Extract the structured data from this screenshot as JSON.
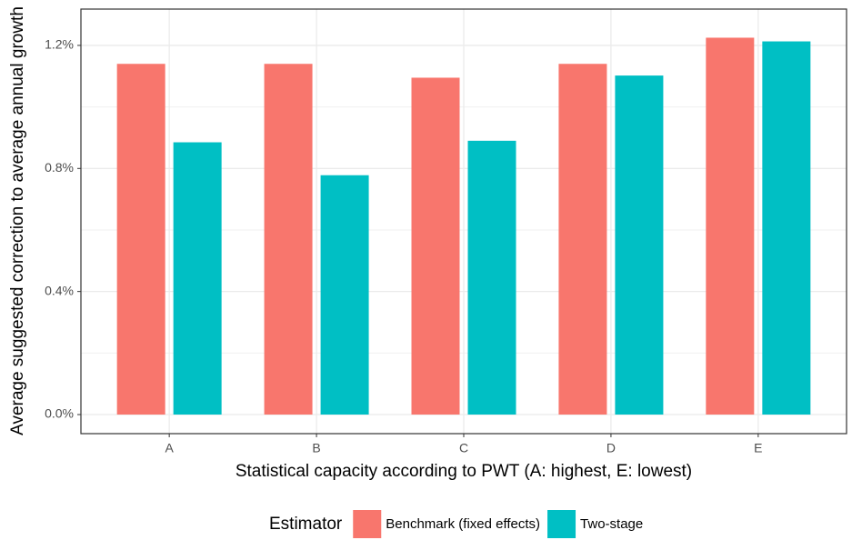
{
  "chart_data": {
    "type": "bar",
    "x_label": "Statistical capacity according to PWT (A: highest, E: lowest)",
    "y_label": "Average suggested correction to average annual growth",
    "categories": [
      "A",
      "B",
      "C",
      "D",
      "E"
    ],
    "series": [
      {
        "name": "Benchmark (fixed effects)",
        "color": "#f8766d",
        "values": [
          1.14,
          1.14,
          1.095,
          1.14,
          1.225
        ]
      },
      {
        "name": "Two-stage",
        "color": "#00bfc4",
        "values": [
          0.885,
          0.778,
          0.89,
          1.102,
          1.213
        ]
      }
    ],
    "legend_title": "Estimator",
    "legend_position": "bottom",
    "ylim": [
      -0.062,
      1.318
    ],
    "yticks": [
      {
        "value": 0,
        "label": "0.0%"
      },
      {
        "value": 0.4,
        "label": "0.4%"
      },
      {
        "value": 0.8,
        "label": "0.8%"
      },
      {
        "value": 1.2,
        "label": "1.2%"
      }
    ],
    "yminor": [
      0.2,
      0.6,
      1.0
    ],
    "grid": true
  }
}
